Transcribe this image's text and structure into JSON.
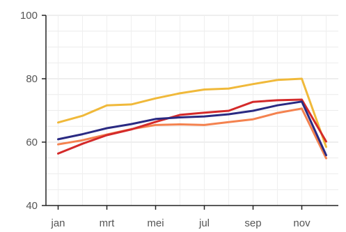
{
  "chart_data": {
    "type": "line",
    "title": "",
    "xlabel": "",
    "ylabel": "",
    "ylim": [
      40,
      100
    ],
    "grid": true,
    "legend": "none",
    "x": [
      1,
      2,
      3,
      4,
      5,
      6,
      7,
      8,
      9,
      10,
      11,
      12
    ],
    "x_ticks": [
      {
        "x": 1,
        "label": "jan"
      },
      {
        "x": 3,
        "label": "mrt"
      },
      {
        "x": 5,
        "label": "mei"
      },
      {
        "x": 7,
        "label": "jul"
      },
      {
        "x": 9,
        "label": "sep"
      },
      {
        "x": 11,
        "label": "nov"
      }
    ],
    "y_ticks": [
      40,
      60,
      80,
      100
    ],
    "series": [
      {
        "color": "#f0b93a",
        "values": [
          66.2,
          68.3,
          71.6,
          71.9,
          73.8,
          75.4,
          76.6,
          76.9,
          78.3,
          79.6,
          80.0,
          58.5
        ]
      },
      {
        "color": "#f4824f",
        "values": [
          59.3,
          60.6,
          62.4,
          64.1,
          65.4,
          65.6,
          65.4,
          66.3,
          67.2,
          69.2,
          70.6,
          54.9
        ]
      },
      {
        "color": "#d42a2a",
        "values": [
          56.4,
          59.5,
          62.2,
          64.0,
          66.4,
          68.6,
          69.3,
          69.9,
          72.7,
          73.2,
          73.4,
          60.2
        ]
      },
      {
        "color": "#2a2a82",
        "values": [
          60.9,
          62.5,
          64.4,
          65.7,
          67.3,
          67.8,
          68.1,
          68.8,
          69.9,
          71.6,
          72.8,
          55.9
        ]
      }
    ]
  }
}
